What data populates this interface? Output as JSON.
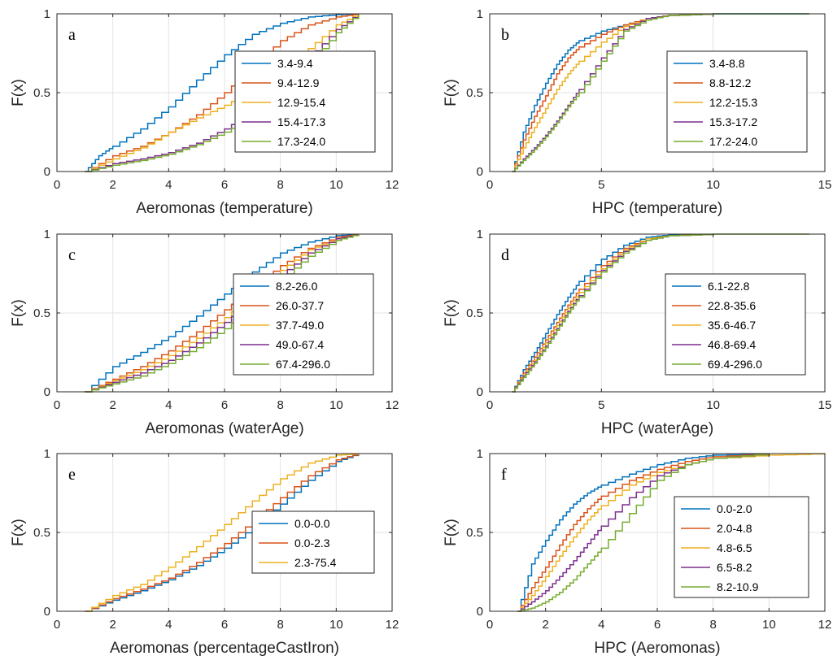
{
  "chart_data": [
    {
      "type": "line",
      "panel": "a",
      "xlabel": "Aeromonas (temperature)",
      "ylabel": "F(x)",
      "xlim": [
        0,
        12
      ],
      "ylim": [
        0,
        1
      ],
      "xticks": [
        "0",
        "2",
        "4",
        "6",
        "8",
        "10",
        "12"
      ],
      "yticks": [
        "0",
        "0.5",
        "1"
      ],
      "grid": true,
      "legend_position": "right",
      "series": [
        {
          "name": "3.4-9.4",
          "color": "#0072BD",
          "x": [
            1,
            1.5,
            2,
            3,
            4,
            5,
            6,
            7,
            8,
            9,
            10,
            10.8
          ],
          "y": [
            0,
            0.1,
            0.16,
            0.27,
            0.41,
            0.58,
            0.74,
            0.87,
            0.94,
            0.98,
            0.995,
            1
          ]
        },
        {
          "name": "9.4-12.9",
          "color": "#D95319",
          "x": [
            1,
            2,
            3,
            4,
            5,
            6,
            7,
            8,
            9,
            10,
            10.8
          ],
          "y": [
            0,
            0.1,
            0.16,
            0.25,
            0.36,
            0.5,
            0.67,
            0.83,
            0.93,
            0.98,
            1
          ]
        },
        {
          "name": "12.9-15.4",
          "color": "#EDB120",
          "x": [
            1,
            2,
            3,
            4,
            5,
            6,
            7,
            8,
            9,
            10,
            10.8
          ],
          "y": [
            0,
            0.08,
            0.15,
            0.25,
            0.34,
            0.42,
            0.52,
            0.63,
            0.78,
            0.93,
            1
          ]
        },
        {
          "name": "15.4-17.3",
          "color": "#7E2F8E",
          "x": [
            1,
            2,
            3,
            4,
            5,
            6,
            7,
            8,
            9,
            10,
            10.8
          ],
          "y": [
            0,
            0.05,
            0.08,
            0.12,
            0.18,
            0.27,
            0.38,
            0.53,
            0.72,
            0.9,
            1
          ]
        },
        {
          "name": "17.3-24.0",
          "color": "#77AC30",
          "x": [
            1,
            2,
            3,
            4,
            5,
            6,
            7,
            8,
            9,
            10,
            10.8
          ],
          "y": [
            0,
            0.04,
            0.07,
            0.11,
            0.17,
            0.25,
            0.35,
            0.5,
            0.68,
            0.88,
            1
          ]
        }
      ]
    },
    {
      "type": "line",
      "panel": "b",
      "xlabel": "HPC (temperature)",
      "ylabel": "F(x)",
      "xlim": [
        0,
        15
      ],
      "ylim": [
        0,
        1
      ],
      "xticks": [
        "0",
        "5",
        "10",
        "15"
      ],
      "yticks": [
        "0",
        "0.5",
        "1"
      ],
      "grid": true,
      "legend_position": "right",
      "series": [
        {
          "name": "3.4-8.8",
          "color": "#0072BD",
          "x": [
            1,
            1.5,
            2,
            2.5,
            3,
            3.5,
            4,
            5,
            6,
            7,
            8,
            10,
            14.3
          ],
          "y": [
            0,
            0.25,
            0.42,
            0.56,
            0.68,
            0.77,
            0.83,
            0.89,
            0.93,
            0.97,
            0.99,
            1,
            1
          ]
        },
        {
          "name": "8.8-12.2",
          "color": "#D95319",
          "x": [
            1,
            1.5,
            2,
            2.5,
            3,
            3.5,
            4,
            5,
            6,
            7,
            8,
            10
          ],
          "y": [
            0,
            0.2,
            0.35,
            0.48,
            0.62,
            0.72,
            0.79,
            0.87,
            0.93,
            0.97,
            0.99,
            1
          ]
        },
        {
          "name": "12.2-15.3",
          "color": "#EDB120",
          "x": [
            1,
            1.5,
            2,
            2.5,
            3,
            3.5,
            4,
            5,
            6,
            7,
            8,
            10
          ],
          "y": [
            0,
            0.15,
            0.28,
            0.4,
            0.52,
            0.62,
            0.7,
            0.82,
            0.92,
            0.97,
            0.99,
            1
          ]
        },
        {
          "name": "15.3-17.2",
          "color": "#7E2F8E",
          "x": [
            1,
            1.5,
            2,
            2.5,
            3,
            3.5,
            4,
            5,
            6,
            7,
            8,
            10
          ],
          "y": [
            0,
            0.08,
            0.15,
            0.23,
            0.32,
            0.42,
            0.52,
            0.72,
            0.9,
            0.97,
            0.99,
            1
          ]
        },
        {
          "name": "17.2-24.0",
          "color": "#77AC30",
          "x": [
            1,
            1.5,
            2,
            2.5,
            3,
            3.5,
            4,
            5,
            6,
            7,
            8,
            10,
            14.3
          ],
          "y": [
            0,
            0.07,
            0.14,
            0.22,
            0.31,
            0.41,
            0.5,
            0.7,
            0.89,
            0.96,
            0.99,
            1,
            1
          ]
        }
      ]
    },
    {
      "type": "line",
      "panel": "c",
      "xlabel": "Aeromonas (waterAge)",
      "ylabel": "F(x)",
      "xlim": [
        0,
        12
      ],
      "ylim": [
        0,
        1
      ],
      "xticks": [
        "0",
        "2",
        "4",
        "6",
        "8",
        "10",
        "12"
      ],
      "yticks": [
        "0",
        "0.5",
        "1"
      ],
      "grid": true,
      "legend_position": "right",
      "series": [
        {
          "name": "8.2-26.0",
          "color": "#0072BD",
          "x": [
            1,
            2,
            3,
            4,
            5,
            6,
            7,
            8,
            9,
            10,
            10.8
          ],
          "y": [
            0,
            0.16,
            0.25,
            0.35,
            0.48,
            0.62,
            0.76,
            0.88,
            0.95,
            0.99,
            1
          ]
        },
        {
          "name": "26.0-37.7",
          "color": "#D95319",
          "x": [
            1,
            2,
            3,
            4,
            5,
            6,
            7,
            8,
            9,
            10,
            10.8
          ],
          "y": [
            0,
            0.08,
            0.16,
            0.26,
            0.38,
            0.52,
            0.66,
            0.8,
            0.91,
            0.98,
            1
          ]
        },
        {
          "name": "37.7-49.0",
          "color": "#EDB120",
          "x": [
            1,
            2,
            3,
            4,
            5,
            6,
            7,
            8,
            9,
            10,
            10.8
          ],
          "y": [
            0,
            0.07,
            0.14,
            0.23,
            0.34,
            0.47,
            0.62,
            0.77,
            0.9,
            0.97,
            1
          ]
        },
        {
          "name": "49.0-67.4",
          "color": "#7E2F8E",
          "x": [
            1,
            2,
            3,
            4,
            5,
            6,
            7,
            8,
            9,
            10,
            10.8
          ],
          "y": [
            0,
            0.06,
            0.12,
            0.2,
            0.31,
            0.44,
            0.59,
            0.74,
            0.88,
            0.97,
            1
          ]
        },
        {
          "name": "67.4-296.0",
          "color": "#77AC30",
          "x": [
            1,
            2,
            3,
            4,
            5,
            6,
            7,
            8,
            9,
            10,
            10.8
          ],
          "y": [
            0,
            0.05,
            0.1,
            0.18,
            0.28,
            0.4,
            0.55,
            0.71,
            0.86,
            0.96,
            1
          ]
        }
      ]
    },
    {
      "type": "line",
      "panel": "d",
      "xlabel": "HPC (waterAge)",
      "ylabel": "F(x)",
      "xlim": [
        0,
        15
      ],
      "ylim": [
        0,
        1
      ],
      "xticks": [
        "0",
        "5",
        "10",
        "15"
      ],
      "yticks": [
        "0",
        "0.5",
        "1"
      ],
      "grid": true,
      "legend_position": "right",
      "series": [
        {
          "name": "6.1-22.8",
          "color": "#0072BD",
          "x": [
            1,
            1.5,
            2,
            2.5,
            3,
            3.5,
            4,
            5,
            6,
            7,
            8,
            10
          ],
          "y": [
            0,
            0.14,
            0.25,
            0.37,
            0.49,
            0.6,
            0.7,
            0.84,
            0.93,
            0.98,
            0.995,
            1
          ]
        },
        {
          "name": "22.8-35.6",
          "color": "#D95319",
          "x": [
            1,
            1.5,
            2,
            2.5,
            3,
            3.5,
            4,
            5,
            6,
            7,
            8,
            10
          ],
          "y": [
            0,
            0.12,
            0.22,
            0.33,
            0.44,
            0.55,
            0.65,
            0.8,
            0.91,
            0.97,
            0.99,
            1
          ]
        },
        {
          "name": "35.6-46.7",
          "color": "#EDB120",
          "x": [
            1,
            1.5,
            2,
            2.5,
            3,
            3.5,
            4,
            5,
            6,
            7,
            8,
            10
          ],
          "y": [
            0,
            0.11,
            0.2,
            0.31,
            0.42,
            0.53,
            0.63,
            0.78,
            0.9,
            0.97,
            0.99,
            1
          ]
        },
        {
          "name": "46.8-69.4",
          "color": "#7E2F8E",
          "x": [
            1,
            1.5,
            2,
            2.5,
            3,
            3.5,
            4,
            5,
            6,
            7,
            8,
            10
          ],
          "y": [
            0,
            0.1,
            0.19,
            0.29,
            0.4,
            0.51,
            0.61,
            0.77,
            0.89,
            0.96,
            0.99,
            1
          ]
        },
        {
          "name": "69.4-296.0",
          "color": "#77AC30",
          "x": [
            1,
            1.5,
            2,
            2.5,
            3,
            3.5,
            4,
            5,
            6,
            7,
            8,
            10,
            14.3
          ],
          "y": [
            0,
            0.09,
            0.18,
            0.28,
            0.39,
            0.5,
            0.6,
            0.76,
            0.88,
            0.96,
            0.99,
            1,
            1
          ]
        }
      ]
    },
    {
      "type": "line",
      "panel": "e",
      "xlabel": "Aeromonas (percentageCastIron)",
      "ylabel": "F(x)",
      "xlim": [
        0,
        12
      ],
      "ylim": [
        0,
        1
      ],
      "xticks": [
        "0",
        "2",
        "4",
        "6",
        "8",
        "10",
        "12"
      ],
      "yticks": [
        "0",
        "0.5",
        "1"
      ],
      "grid": true,
      "legend_position": "right",
      "series": [
        {
          "name": "0.0-0.0",
          "color": "#0072BD",
          "x": [
            1,
            2,
            3,
            4,
            5,
            6,
            7,
            8,
            9,
            10,
            10.8
          ],
          "y": [
            0,
            0.07,
            0.13,
            0.2,
            0.29,
            0.4,
            0.53,
            0.68,
            0.83,
            0.95,
            1
          ]
        },
        {
          "name": "0.0-2.3",
          "color": "#D95319",
          "x": [
            1,
            2,
            3,
            4,
            5,
            6,
            7,
            8,
            9,
            10,
            10.8
          ],
          "y": [
            0,
            0.08,
            0.14,
            0.21,
            0.31,
            0.43,
            0.57,
            0.72,
            0.86,
            0.96,
            1
          ]
        },
        {
          "name": "2.3-75.4",
          "color": "#EDB120",
          "x": [
            1,
            2,
            3,
            4,
            5,
            6,
            7,
            8,
            9,
            10,
            10.8
          ],
          "y": [
            0,
            0.1,
            0.17,
            0.28,
            0.41,
            0.55,
            0.7,
            0.84,
            0.94,
            0.99,
            1
          ]
        }
      ]
    },
    {
      "type": "line",
      "panel": "f",
      "xlabel": "HPC (Aeromonas)",
      "ylabel": "F(x)",
      "xlim": [
        0,
        12
      ],
      "ylim": [
        0,
        1
      ],
      "xticks": [
        "0",
        "2",
        "4",
        "6",
        "8",
        "10",
        "12"
      ],
      "yticks": [
        "0",
        "0.5",
        "1"
      ],
      "grid": true,
      "legend_position": "right",
      "series": [
        {
          "name": "0.0-2.0",
          "color": "#0072BD",
          "x": [
            1,
            1.5,
            2,
            2.5,
            3,
            3.5,
            4,
            5,
            6,
            7,
            8,
            10
          ],
          "y": [
            0,
            0.3,
            0.45,
            0.58,
            0.68,
            0.75,
            0.8,
            0.87,
            0.93,
            0.97,
            0.99,
            1
          ]
        },
        {
          "name": "2.0-4.8",
          "color": "#D95319",
          "x": [
            1,
            1.5,
            2,
            2.5,
            3,
            3.5,
            4,
            5,
            6,
            7,
            8,
            10
          ],
          "y": [
            0,
            0.15,
            0.28,
            0.42,
            0.55,
            0.65,
            0.73,
            0.83,
            0.9,
            0.95,
            0.98,
            1
          ]
        },
        {
          "name": "4.8-6.5",
          "color": "#EDB120",
          "x": [
            1,
            1.5,
            2,
            2.5,
            3,
            3.5,
            4,
            5,
            6,
            7,
            8,
            10,
            12
          ],
          "y": [
            0,
            0.1,
            0.22,
            0.35,
            0.47,
            0.58,
            0.67,
            0.8,
            0.88,
            0.93,
            0.97,
            0.99,
            1
          ]
        },
        {
          "name": "6.5-8.2",
          "color": "#7E2F8E",
          "x": [
            1,
            1.5,
            2,
            2.5,
            3,
            3.5,
            4,
            5,
            6,
            7,
            8,
            10
          ],
          "y": [
            0,
            0.06,
            0.13,
            0.22,
            0.32,
            0.43,
            0.54,
            0.72,
            0.86,
            0.93,
            0.97,
            1
          ]
        },
        {
          "name": "8.2-10.9",
          "color": "#77AC30",
          "x": [
            1,
            1.5,
            2,
            2.5,
            3,
            3.5,
            4,
            5,
            6,
            7,
            8,
            10
          ],
          "y": [
            0,
            0.02,
            0.06,
            0.12,
            0.2,
            0.3,
            0.4,
            0.62,
            0.83,
            0.93,
            0.97,
            1
          ]
        }
      ]
    }
  ]
}
